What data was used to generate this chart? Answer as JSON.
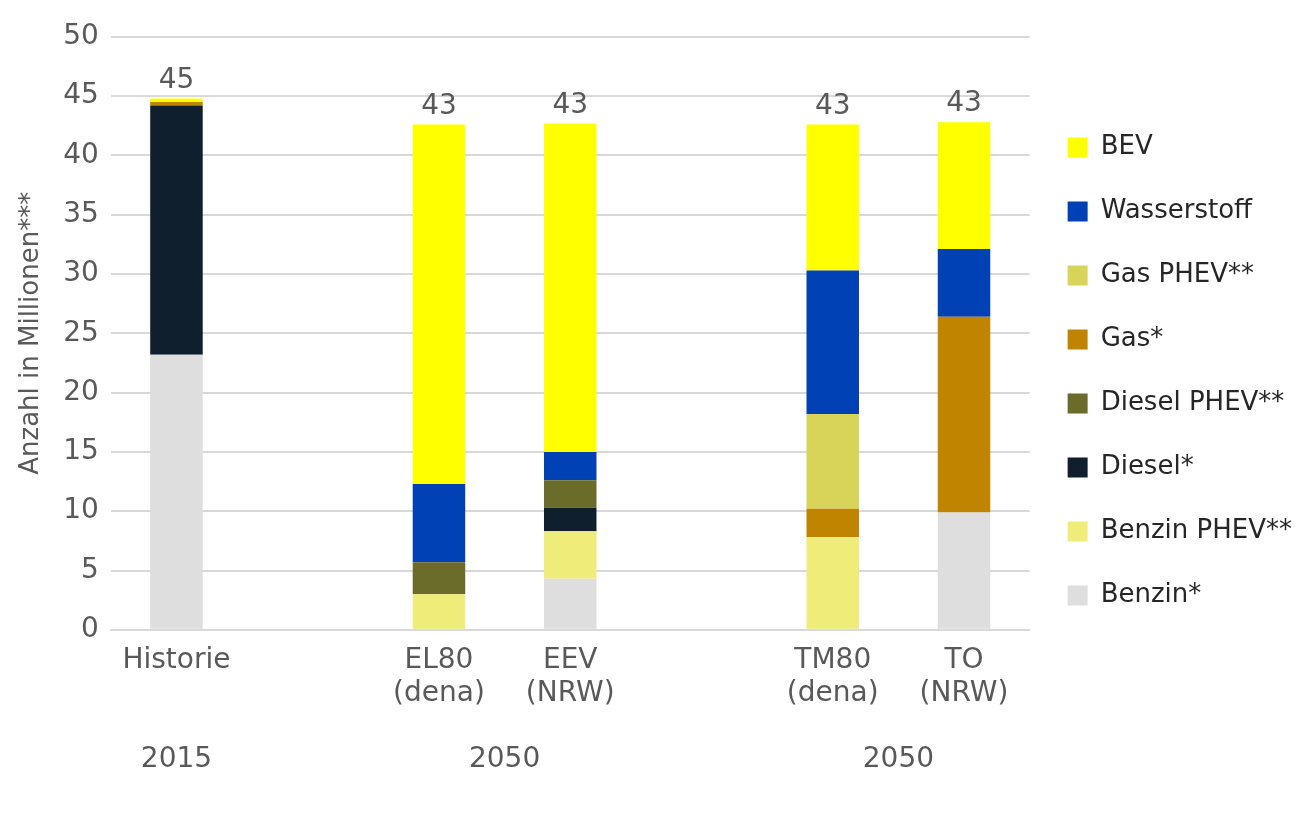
{
  "chart_data": {
    "type": "bar",
    "stacked": true,
    "ylabel": "Anzahl in Millionen***",
    "categories": [
      "Historie",
      null,
      "EL80 (dena)",
      "EEV (NRW)",
      null,
      "TM80 (dena)",
      "TO (NRW)"
    ],
    "series": [
      {
        "name": "Benzin*",
        "color": "#dddedd",
        "values": [
          23.2,
          null,
          null,
          4.3,
          null,
          null,
          9.9
        ]
      },
      {
        "name": "Benzin PHEV**",
        "color": "#f0ec7a",
        "values": [
          null,
          null,
          3.0,
          4.0,
          null,
          7.8,
          null
        ]
      },
      {
        "name": "Diesel*",
        "color": "#0f1f2e",
        "values": [
          21.0,
          null,
          null,
          2.0,
          null,
          null,
          null
        ]
      },
      {
        "name": "Diesel PHEV**",
        "color": "#6b6b2a",
        "values": [
          null,
          null,
          2.7,
          2.3,
          null,
          null,
          null
        ]
      },
      {
        "name": "Gas*",
        "color": "#bf8500",
        "values": [
          0.3,
          null,
          null,
          null,
          null,
          2.4,
          16.5
        ]
      },
      {
        "name": "Gas PHEV**",
        "color": "#d8d45a",
        "values": [
          null,
          null,
          null,
          null,
          null,
          8.0,
          null
        ]
      },
      {
        "name": "Wasserstoff",
        "color": "#0041b5",
        "values": [
          null,
          null,
          6.6,
          2.4,
          null,
          12.1,
          5.7
        ]
      },
      {
        "name": "BEV",
        "color": "#ffff00",
        "values": [
          0.3,
          null,
          30.3,
          27.7,
          null,
          12.3,
          10.7
        ]
      }
    ],
    "totals": [
      "45",
      null,
      "43",
      "43",
      null,
      "43",
      "43"
    ],
    "annotations": [
      "2015",
      "2050",
      "2050"
    ],
    "ylim": [
      0,
      50
    ],
    "yticks": [
      0,
      5,
      10,
      15,
      20,
      25,
      30,
      35,
      40,
      45,
      50
    ],
    "grid": "y",
    "legend": "right"
  }
}
